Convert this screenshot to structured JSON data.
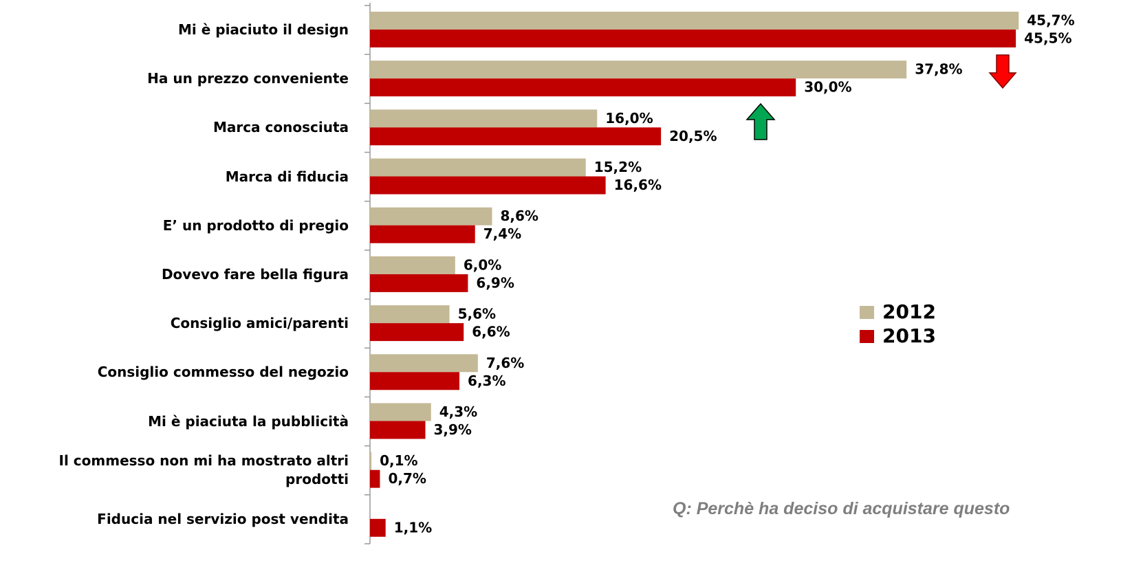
{
  "chart_data": {
    "type": "bar",
    "orientation": "horizontal",
    "categories": [
      "Mi è piaciuto il design",
      "Ha un prezzo conveniente",
      "Marca conosciuta",
      "Marca di fiducia",
      "E’ un prodotto di pregio",
      "Dovevo fare bella figura",
      "Consiglio amici/parenti",
      "Consiglio commesso del negozio",
      "Mi è piaciuta la pubblicità",
      "Il commesso non mi ha mostrato altri prodotti",
      "Fiducia nel servizio post vendita"
    ],
    "series": [
      {
        "name": "2012",
        "color": "#c4b996",
        "values": [
          45.7,
          37.8,
          16.0,
          15.2,
          8.6,
          6.0,
          5.6,
          7.6,
          4.3,
          0.1,
          null
        ],
        "value_labels": [
          "45,7%",
          "37,8%",
          "16,0%",
          "15,2%",
          "8,6%",
          "6,0%",
          "5,6%",
          "7,6%",
          "4,3%",
          "0,1%",
          null
        ]
      },
      {
        "name": "2013",
        "color": "#c00000",
        "values": [
          45.5,
          30.0,
          20.5,
          16.6,
          7.4,
          6.9,
          6.6,
          6.3,
          3.9,
          0.7,
          1.1
        ],
        "value_labels": [
          "45,5%",
          "30,0%",
          "20,5%",
          "16,6%",
          "7,4%",
          "6,9%",
          "6,6%",
          "6,3%",
          "3,9%",
          "0,7%",
          "1,1%"
        ]
      }
    ],
    "xlim": [
      0,
      50
    ],
    "annotation": "Q: Perchè ha deciso di acquistare questo"
  }
}
